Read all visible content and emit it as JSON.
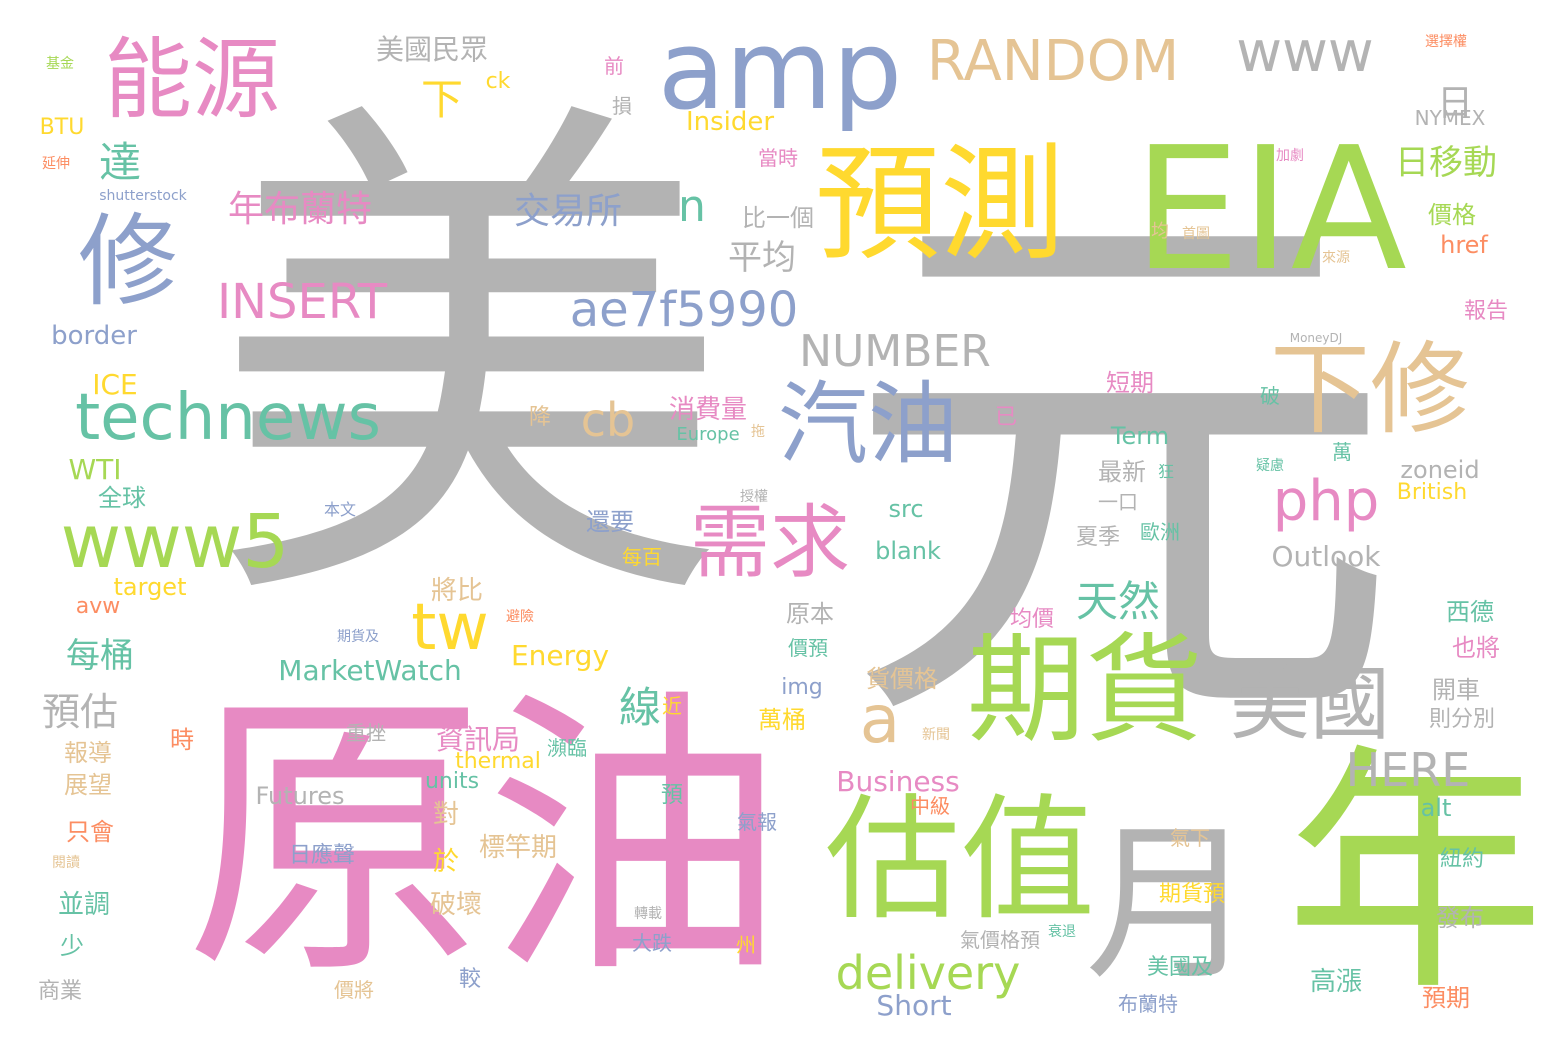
{
  "palette": {
    "gray": "#b3b3b3",
    "pink": "#e78ac3",
    "green": "#a6d854",
    "yellow": "#ffd92f",
    "blue": "#8da0cb",
    "teal": "#66c2a5",
    "tan": "#e5c494",
    "orange": "#fc8d62"
  },
  "words": [
    {
      "text": "美",
      "color": "gray"
    },
    {
      "text": "元",
      "color": "gray"
    },
    {
      "text": "原油",
      "color": "pink"
    },
    {
      "text": "EIA",
      "color": "green"
    },
    {
      "text": "年",
      "color": "green"
    },
    {
      "text": "月",
      "color": "gray"
    },
    {
      "text": "預測",
      "color": "yellow"
    },
    {
      "text": "估值",
      "color": "green"
    },
    {
      "text": "期貨",
      "color": "green"
    },
    {
      "text": "amp",
      "color": "blue"
    },
    {
      "text": "能源",
      "color": "pink"
    },
    {
      "text": "修",
      "color": "blue"
    },
    {
      "text": "汽油",
      "color": "blue"
    },
    {
      "text": "下修",
      "color": "tan"
    },
    {
      "text": "需求",
      "color": "pink"
    },
    {
      "text": "美國",
      "color": "gray"
    },
    {
      "text": "www5",
      "color": "green"
    },
    {
      "text": "technews",
      "color": "teal"
    },
    {
      "text": "RANDOM",
      "color": "tan"
    },
    {
      "text": "www",
      "color": "gray"
    },
    {
      "text": "ae7f5990",
      "color": "blue"
    },
    {
      "text": "INSERT",
      "color": "pink"
    },
    {
      "text": "NUMBER",
      "color": "gray"
    },
    {
      "text": "delivery",
      "color": "green"
    },
    {
      "text": "HERE",
      "color": "gray"
    },
    {
      "text": "tw",
      "color": "yellow"
    },
    {
      "text": "php",
      "color": "pink"
    },
    {
      "text": "cb",
      "color": "tan"
    },
    {
      "text": "a",
      "color": "tan"
    },
    {
      "text": "天然",
      "color": "teal"
    },
    {
      "text": "年布蘭特",
      "color": "pink"
    },
    {
      "text": "交易所",
      "color": "blue"
    },
    {
      "text": "日移動",
      "color": "green"
    },
    {
      "text": "日",
      "color": "gray"
    },
    {
      "text": "達",
      "color": "teal"
    },
    {
      "text": "n",
      "color": "teal"
    },
    {
      "text": "平均",
      "color": "gray"
    },
    {
      "text": "下",
      "color": "yellow"
    },
    {
      "text": "美國民眾",
      "color": "gray"
    },
    {
      "text": "MarketWatch",
      "color": "teal"
    },
    {
      "text": "每桶",
      "color": "teal"
    },
    {
      "text": "預估",
      "color": "gray"
    },
    {
      "text": "線",
      "color": "teal"
    },
    {
      "text": "資訊局",
      "color": "pink"
    },
    {
      "text": "Business",
      "color": "pink"
    },
    {
      "text": "Energy",
      "color": "yellow"
    },
    {
      "text": "Outlook",
      "color": "gray"
    },
    {
      "text": "Short",
      "color": "blue"
    },
    {
      "text": "Futures",
      "color": "gray"
    },
    {
      "text": "border",
      "color": "blue"
    },
    {
      "text": "WTI",
      "color": "green"
    },
    {
      "text": "ICE",
      "color": "yellow"
    },
    {
      "text": "Insider",
      "color": "yellow"
    },
    {
      "text": "比一個",
      "color": "gray"
    },
    {
      "text": "價格",
      "color": "green"
    },
    {
      "text": "href",
      "color": "orange"
    },
    {
      "text": "消費量",
      "color": "pink"
    },
    {
      "text": "短期",
      "color": "pink"
    },
    {
      "text": "Term",
      "color": "teal"
    },
    {
      "text": "最新",
      "color": "gray"
    },
    {
      "text": "zoneid",
      "color": "gray"
    },
    {
      "text": "British",
      "color": "yellow"
    },
    {
      "text": "src",
      "color": "teal"
    },
    {
      "text": "blank",
      "color": "teal"
    },
    {
      "text": "target",
      "color": "yellow"
    },
    {
      "text": "avw",
      "color": "orange"
    },
    {
      "text": "全球",
      "color": "teal"
    },
    {
      "text": "還要",
      "color": "blue"
    },
    {
      "text": "將比",
      "color": "tan"
    },
    {
      "text": "原本",
      "color": "gray"
    },
    {
      "text": "img",
      "color": "blue"
    },
    {
      "text": "萬桶",
      "color": "yellow"
    },
    {
      "text": "貨價格",
      "color": "tan"
    },
    {
      "text": "開車",
      "color": "gray"
    },
    {
      "text": "則分別",
      "color": "gray"
    },
    {
      "text": "西德",
      "color": "teal"
    },
    {
      "text": "也將",
      "color": "pink"
    },
    {
      "text": "報告",
      "color": "pink"
    },
    {
      "text": "alt",
      "color": "teal"
    },
    {
      "text": "units",
      "color": "teal"
    },
    {
      "text": "thermal",
      "color": "yellow"
    },
    {
      "text": "報導",
      "color": "tan"
    },
    {
      "text": "展望",
      "color": "tan"
    },
    {
      "text": "只會",
      "color": "orange"
    },
    {
      "text": "並調",
      "color": "teal"
    },
    {
      "text": "少",
      "color": "teal"
    },
    {
      "text": "商業",
      "color": "gray"
    },
    {
      "text": "對",
      "color": "tan"
    },
    {
      "text": "於",
      "color": "yellow"
    },
    {
      "text": "破壞",
      "color": "tan"
    },
    {
      "text": "標竿期",
      "color": "tan"
    },
    {
      "text": "日應聲",
      "color": "blue"
    },
    {
      "text": "氣報",
      "color": "blue"
    },
    {
      "text": "中級",
      "color": "orange"
    },
    {
      "text": "大跌",
      "color": "blue"
    },
    {
      "text": "高漲",
      "color": "teal"
    },
    {
      "text": "美國及",
      "color": "teal"
    },
    {
      "text": "期貨預",
      "color": "yellow"
    },
    {
      "text": "紐約",
      "color": "teal"
    },
    {
      "text": "發布",
      "color": "gray"
    },
    {
      "text": "預期",
      "color": "orange"
    },
    {
      "text": "布蘭特",
      "color": "blue"
    },
    {
      "text": "氣價格預",
      "color": "gray"
    },
    {
      "text": "夏季",
      "color": "gray"
    },
    {
      "text": "歐洲",
      "color": "teal"
    },
    {
      "text": "一口",
      "color": "gray"
    },
    {
      "text": "每百",
      "color": "yellow"
    },
    {
      "text": "均價",
      "color": "pink"
    },
    {
      "text": "價預",
      "color": "teal"
    },
    {
      "text": "重挫",
      "color": "gray"
    },
    {
      "text": "瀕臨",
      "color": "teal"
    },
    {
      "text": "近",
      "color": "yellow"
    },
    {
      "text": "時",
      "color": "orange"
    },
    {
      "text": "預",
      "color": "teal"
    },
    {
      "text": "氣下",
      "color": "tan"
    },
    {
      "text": "降",
      "color": "tan"
    },
    {
      "text": "已",
      "color": "pink"
    },
    {
      "text": "萬",
      "color": "teal"
    },
    {
      "text": "狂",
      "color": "teal"
    },
    {
      "text": "破",
      "color": "teal"
    },
    {
      "text": "前",
      "color": "pink"
    },
    {
      "text": "損",
      "color": "gray"
    },
    {
      "text": "ck",
      "color": "yellow"
    },
    {
      "text": "當時",
      "color": "pink"
    },
    {
      "text": "均",
      "color": "tan"
    },
    {
      "text": "首圖",
      "color": "tan"
    },
    {
      "text": "來源",
      "color": "tan"
    },
    {
      "text": "加劇",
      "color": "pink"
    },
    {
      "text": "NYMEX",
      "color": "gray"
    },
    {
      "text": "MoneyDJ",
      "color": "gray"
    },
    {
      "text": "選擇權",
      "color": "orange"
    },
    {
      "text": "基金",
      "color": "green"
    },
    {
      "text": "BTU",
      "color": "yellow"
    },
    {
      "text": "延伸",
      "color": "orange"
    },
    {
      "text": "shutterstock",
      "color": "blue"
    },
    {
      "text": "本文",
      "color": "blue"
    },
    {
      "text": "授權",
      "color": "gray"
    },
    {
      "text": "Europe",
      "color": "teal"
    },
    {
      "text": "拖",
      "color": "tan"
    },
    {
      "text": "避險",
      "color": "orange"
    },
    {
      "text": "期貨及",
      "color": "blue"
    },
    {
      "text": "閱讀",
      "color": "tan"
    },
    {
      "text": "轉載",
      "color": "gray"
    },
    {
      "text": "州",
      "color": "yellow"
    },
    {
      "text": "價將",
      "color": "tan"
    },
    {
      "text": "較",
      "color": "blue"
    },
    {
      "text": "新聞",
      "color": "tan"
    },
    {
      "text": "衰退",
      "color": "teal"
    },
    {
      "text": "疑慮",
      "color": "teal"
    }
  ]
}
